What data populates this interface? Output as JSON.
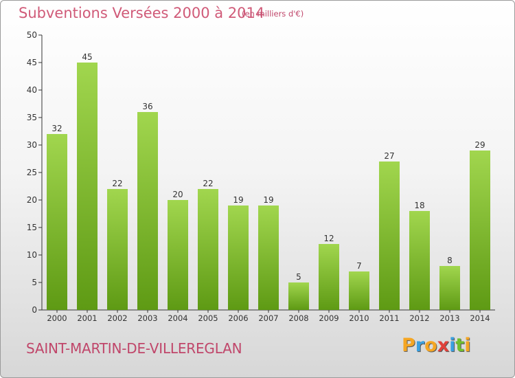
{
  "header": {
    "title": "Subventions Versées 2000 à 2014",
    "subtitle": "(en milliers d'€)"
  },
  "footer": {
    "commune": "SAINT-MARTIN-DE-VILLEREGLAN",
    "logo_text": "Proxiti"
  },
  "colors": {
    "bar_top": "#a1d64e",
    "bar_bottom": "#5e9a14",
    "title": "#d05a78"
  },
  "chart_data": {
    "type": "bar",
    "title": "Subventions Versées 2000 à 2014",
    "subtitle": "(en milliers d'€)",
    "categories": [
      "2000",
      "2001",
      "2002",
      "2003",
      "2004",
      "2005",
      "2006",
      "2007",
      "2008",
      "2009",
      "2010",
      "2011",
      "2012",
      "2013",
      "2014"
    ],
    "values": [
      32,
      45,
      22,
      36,
      20,
      22,
      19,
      19,
      5,
      12,
      7,
      27,
      18,
      8,
      29
    ],
    "ylim": [
      0,
      50
    ],
    "yticks": [
      0,
      5,
      10,
      15,
      20,
      25,
      30,
      35,
      40,
      45,
      50
    ],
    "grid": false,
    "data_labels": true
  }
}
